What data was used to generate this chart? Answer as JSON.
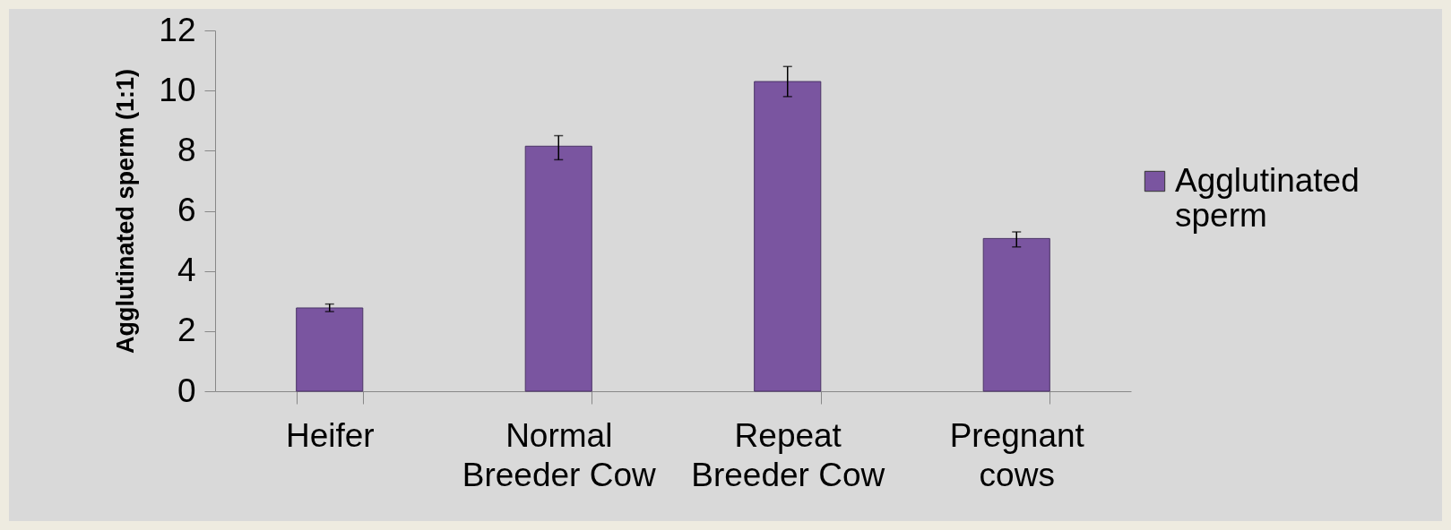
{
  "chart_data": {
    "type": "bar",
    "categories": [
      "Heifer",
      "Normal Breeder Cow",
      "Repeat Breeder Cow",
      "Pregnant cows"
    ],
    "ylabel": "Agglutinated sperm (1:1)",
    "series": [
      {
        "name": "Agglutinated sperm",
        "color": "#7a55a0",
        "values": [
          2.77,
          8.15,
          10.3,
          5.08
        ],
        "errors": [
          [
            2.65,
            2.9
          ],
          [
            7.7,
            8.5
          ],
          [
            9.8,
            10.8
          ],
          [
            4.8,
            5.3
          ]
        ]
      }
    ],
    "ylim": [
      0,
      12
    ],
    "yticks": [
      0,
      2,
      4,
      6,
      8,
      10,
      12
    ],
    "legend": "right"
  }
}
